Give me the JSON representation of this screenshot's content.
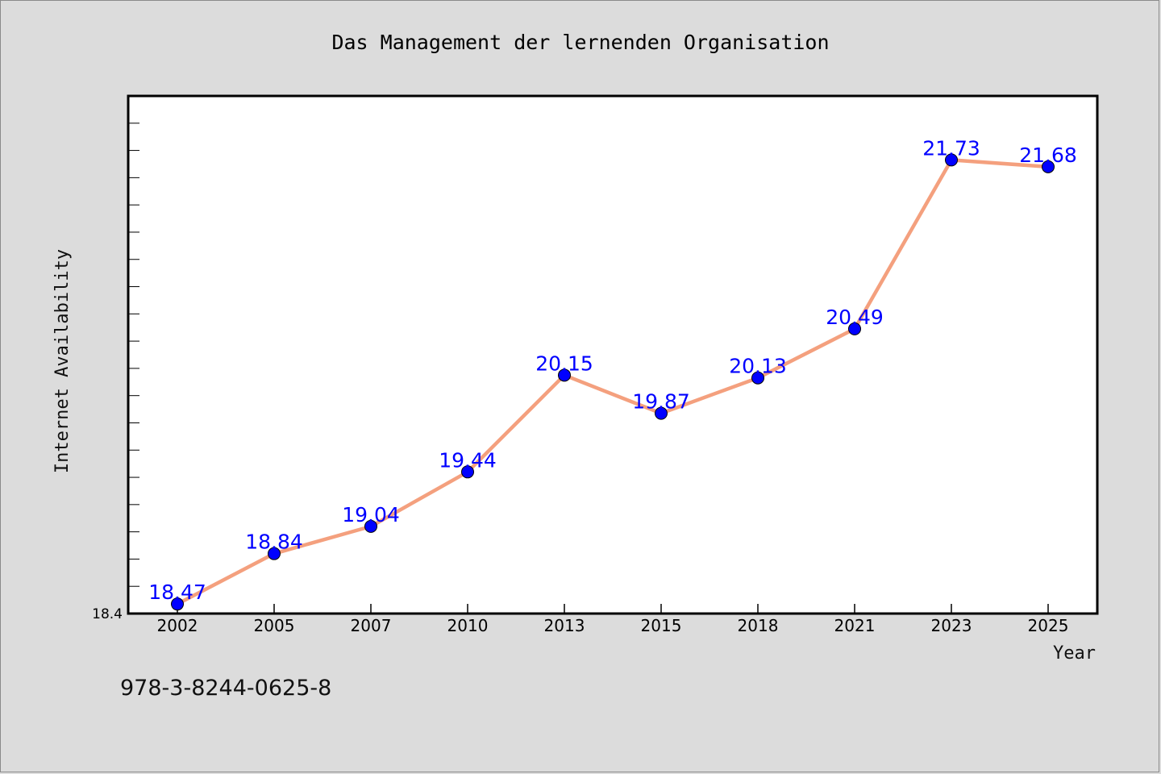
{
  "chart_data": {
    "type": "line",
    "title": "Das Management der lernenden Organisation",
    "xlabel": "Year",
    "ylabel": "Internet Availability",
    "categories": [
      "2002",
      "2005",
      "2007",
      "2010",
      "2013",
      "2015",
      "2018",
      "2021",
      "2023",
      "2025"
    ],
    "series": [
      {
        "values": [
          18.47,
          18.84,
          19.04,
          19.44,
          20.15,
          19.87,
          20.13,
          20.49,
          21.73,
          21.68
        ]
      }
    ],
    "data_labels": [
      "18.47",
      "18.84",
      "19.04",
      "19.44",
      "20.15",
      "19.87",
      "20.13",
      "20.49",
      "21.73",
      "21.68"
    ],
    "ylim": [
      18.4,
      22.2
    ],
    "y_tick_label": "18.4",
    "grid": false,
    "legend": "none",
    "colors": {
      "line": "#f4a07e",
      "marker": "#0000ff",
      "data_label": "#0000ff",
      "plot_background": "#ffffff",
      "page_background": "#dcdcdc"
    }
  },
  "footer": {
    "isbn": "978-3-8244-0625-8"
  }
}
